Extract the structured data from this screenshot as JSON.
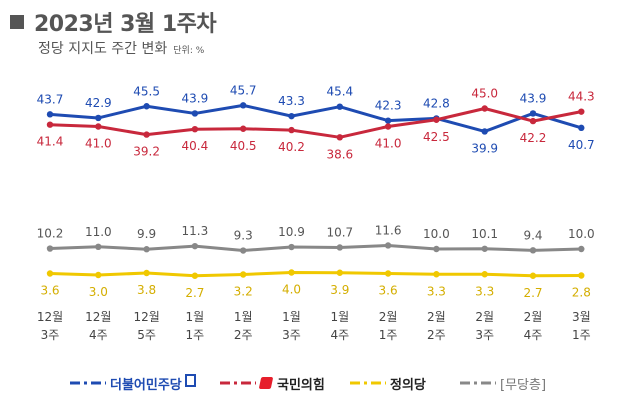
{
  "header": {
    "title": "2023년 3월 1주차",
    "subtitle": "정당 지지도 주간 변화",
    "unit": "단위: %"
  },
  "legend": {
    "items": [
      {
        "label": "더불어민주당",
        "color": "#1e4bb2"
      },
      {
        "label": "국민의힘",
        "color": "#c8283c"
      },
      {
        "label": "정의당",
        "color": "#f0c800"
      },
      {
        "label": "[무당층]",
        "color": "#888888"
      }
    ]
  },
  "chart_data": {
    "type": "line",
    "categories": [
      "12월\n3주",
      "12월\n4주",
      "12월\n5주",
      "1월\n1주",
      "1월\n2주",
      "1월\n3주",
      "1월\n4주",
      "2월\n1주",
      "2월\n2주",
      "2월\n3주",
      "2월\n4주",
      "3월\n1주"
    ],
    "series": [
      {
        "name": "더불어민주당",
        "color": "#1e4bb2",
        "values": [
          43.7,
          42.9,
          45.5,
          43.9,
          45.7,
          43.3,
          45.4,
          42.3,
          42.8,
          39.9,
          43.9,
          40.7
        ]
      },
      {
        "name": "국민의힘",
        "color": "#c8283c",
        "values": [
          41.4,
          41.0,
          39.2,
          40.4,
          40.5,
          40.2,
          38.6,
          41.0,
          42.5,
          45.0,
          42.2,
          44.3
        ]
      },
      {
        "name": "[무당층]",
        "color": "#888888",
        "values": [
          10.2,
          11.0,
          9.9,
          11.3,
          9.3,
          10.9,
          10.7,
          11.6,
          10.0,
          10.1,
          9.4,
          10.0
        ]
      },
      {
        "name": "정의당",
        "color": "#f0c800",
        "values": [
          3.6,
          3.0,
          3.8,
          2.7,
          3.2,
          4.0,
          3.9,
          3.6,
          3.3,
          3.3,
          2.7,
          2.8
        ]
      }
    ],
    "labels": {
      "더불어민주당": [
        "43.7",
        "42.9",
        "45.5",
        "43.9",
        "45.7",
        "43.3",
        "45.4",
        "42.3",
        "42.8",
        "39.9",
        "43.9",
        "40.7"
      ],
      "국민의힘": [
        "41.4",
        "41.0",
        "39.2",
        "40.4",
        "40.5",
        "40.2",
        "38.6",
        "41.0",
        "42.5",
        "45.0",
        "42.2",
        "44.3"
      ],
      "[무당층]": [
        "10.2",
        "11.0",
        "9.9",
        "11.3",
        "9.3",
        "10.9",
        "10.7",
        "11.6",
        "10.0",
        "10.1",
        "9.4",
        "10.0"
      ],
      "정의당": [
        "3.6",
        "3.0",
        "3.8",
        "2.7",
        "3.2",
        "4.0",
        "3.9",
        "3.6",
        "3.3",
        "3.3",
        "2.7",
        "2.8"
      ]
    },
    "label_placement": {
      "더불어민주당": [
        "above",
        "above",
        "above",
        "above",
        "above",
        "above",
        "above",
        "above",
        "above",
        "below",
        "above",
        "below"
      ],
      "국민의힘": [
        "below",
        "below",
        "below",
        "below",
        "below",
        "below",
        "below",
        "below",
        "below",
        "above",
        "below",
        "above"
      ],
      "[무당층]": [
        "above",
        "above",
        "above",
        "above",
        "above",
        "above",
        "above",
        "above",
        "above",
        "above",
        "above",
        "above"
      ],
      "정의당": [
        "below",
        "below",
        "below",
        "below",
        "below",
        "below",
        "below",
        "below",
        "below",
        "below",
        "below",
        "below"
      ]
    },
    "grid": false,
    "legend_position": "bottom"
  }
}
